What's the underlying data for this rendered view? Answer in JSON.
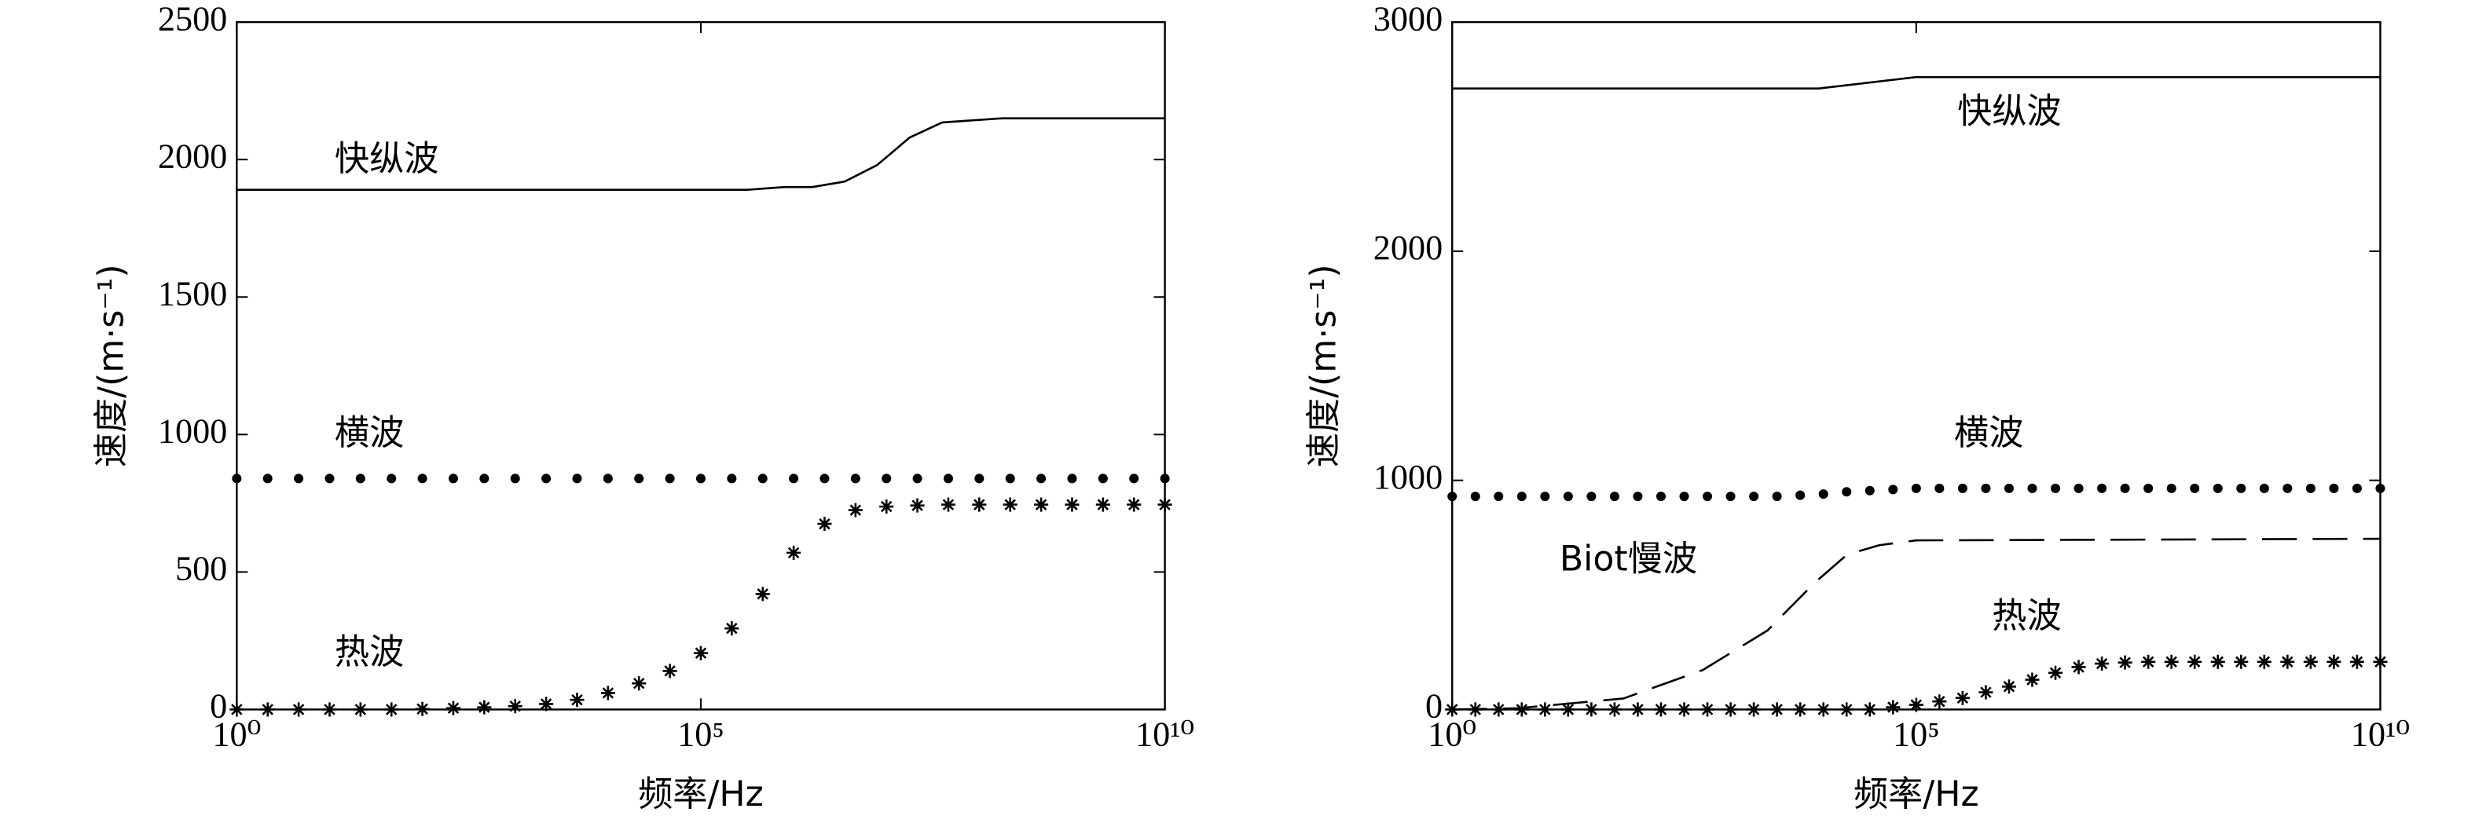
{
  "chart_data": [
    {
      "type": "line",
      "xlabel": "频率/Hz",
      "ylabel": "速度/(m·s⁻¹)",
      "xscale": "log",
      "xlim": [
        1,
        10000000000
      ],
      "xticks": [
        {
          "value": 1,
          "label": "10⁰"
        },
        {
          "value": 100000,
          "label": "10⁵"
        },
        {
          "value": 10000000000,
          "label": "10¹⁰"
        }
      ],
      "ylim": [
        0,
        2500
      ],
      "yticks": [
        0,
        500,
        1000,
        1500,
        2000,
        2500
      ],
      "x": [
        1,
        2.154,
        4.642,
        10,
        21.54,
        46.42,
        100,
        215.4,
        464.2,
        1000,
        2154,
        4642,
        10000,
        21540,
        46420,
        100000,
        215400,
        464200,
        1000000,
        2154000,
        4642000,
        10000000,
        21540000,
        46420000,
        100000000,
        215400000,
        464200000,
        1000000000,
        2154000000,
        4642000000,
        10000000000
      ],
      "series": [
        {
          "name": "快纵波",
          "color": "#000000",
          "linestyle": "solid",
          "marker": "none",
          "x": [
            1,
            316200,
            794300,
            1585000,
            3548000,
            7943000,
            17780000,
            39810000,
            177800000,
            10000000000
          ],
          "values": [
            1890,
            1890,
            1900,
            1900,
            1920,
            1980,
            2080,
            2135,
            2150,
            2150
          ]
        },
        {
          "name": "横波",
          "color": "#000000",
          "linestyle": "none",
          "marker": "dot",
          "values": [
            840,
            840,
            840,
            840,
            840,
            840,
            840,
            840,
            840,
            840,
            840,
            840,
            840,
            840,
            840,
            840,
            840,
            840,
            840,
            840,
            840,
            840,
            840,
            840,
            840,
            840,
            840,
            840,
            840,
            840,
            840
          ]
        },
        {
          "name": "热波",
          "color": "#000000",
          "linestyle": "none",
          "marker": "asterisk",
          "values": [
            0,
            0,
            0,
            0,
            0,
            0,
            2,
            5,
            8,
            12,
            20,
            35,
            60,
            95,
            140,
            205,
            295,
            420,
            570,
            675,
            725,
            738,
            742,
            745,
            745,
            745,
            745,
            745,
            745,
            745,
            745
          ]
        }
      ]
    },
    {
      "type": "line",
      "xlabel": "频率/Hz",
      "ylabel": "速度/(m·s⁻¹)",
      "xscale": "log",
      "xlim": [
        1,
        10000000000
      ],
      "xticks": [
        {
          "value": 1,
          "label": "10⁰"
        },
        {
          "value": 100000,
          "label": "10⁵"
        },
        {
          "value": 10000000000,
          "label": "10¹⁰"
        }
      ],
      "ylim": [
        0,
        3000
      ],
      "yticks": [
        0,
        1000,
        2000,
        3000
      ],
      "x": [
        1,
        1.778,
        3.162,
        5.623,
        10,
        17.78,
        31.62,
        56.23,
        100,
        177.8,
        316.2,
        562.3,
        1000,
        1778,
        3162,
        5623,
        10000,
        17780,
        31620,
        56230,
        100000,
        177800,
        316200,
        562300,
        1000000,
        1778000,
        3162000,
        5623000,
        10000000,
        17780000,
        31620000,
        56230000,
        100000000,
        177800000,
        316200000,
        562300000,
        1000000000,
        1778000000,
        3162000000,
        5623000000,
        10000000000
      ],
      "series": [
        {
          "name": "快纵波",
          "color": "#000000",
          "linestyle": "solid",
          "marker": "none",
          "x": [
            1,
            8913,
            100000,
            10000000000
          ],
          "values": [
            2710,
            2710,
            2760,
            2760
          ]
        },
        {
          "name": "横波",
          "color": "#000000",
          "linestyle": "none",
          "marker": "dot",
          "values": [
            930,
            930,
            930,
            930,
            930,
            930,
            930,
            930,
            930,
            930,
            930,
            930,
            930,
            930,
            930,
            935,
            940,
            950,
            955,
            960,
            965,
            965,
            965,
            965,
            965,
            965,
            965,
            965,
            965,
            965,
            965,
            965,
            965,
            965,
            965,
            965,
            965,
            965,
            965,
            965,
            965
          ]
        },
        {
          "name": "Biot慢波",
          "color": "#000000",
          "linestyle": "dashed",
          "marker": "none",
          "x": [
            1,
            5,
            70,
            500,
            2500,
            8000,
            18000,
            40000,
            100000,
            3000000,
            10000000000
          ],
          "values": [
            0,
            5,
            48,
            172,
            345,
            552,
            676,
            717,
            738,
            740,
            745
          ]
        },
        {
          "name": "热波",
          "color": "#000000",
          "linestyle": "none",
          "marker": "asterisk",
          "values": [
            0,
            0,
            0,
            0,
            0,
            0,
            0,
            0,
            0,
            0,
            0,
            0,
            0,
            0,
            0,
            0,
            0,
            0,
            0,
            10,
            20,
            35,
            50,
            75,
            100,
            130,
            160,
            185,
            200,
            205,
            208,
            208,
            208,
            208,
            208,
            208,
            208,
            208,
            208,
            208,
            208
          ]
        }
      ]
    }
  ]
}
